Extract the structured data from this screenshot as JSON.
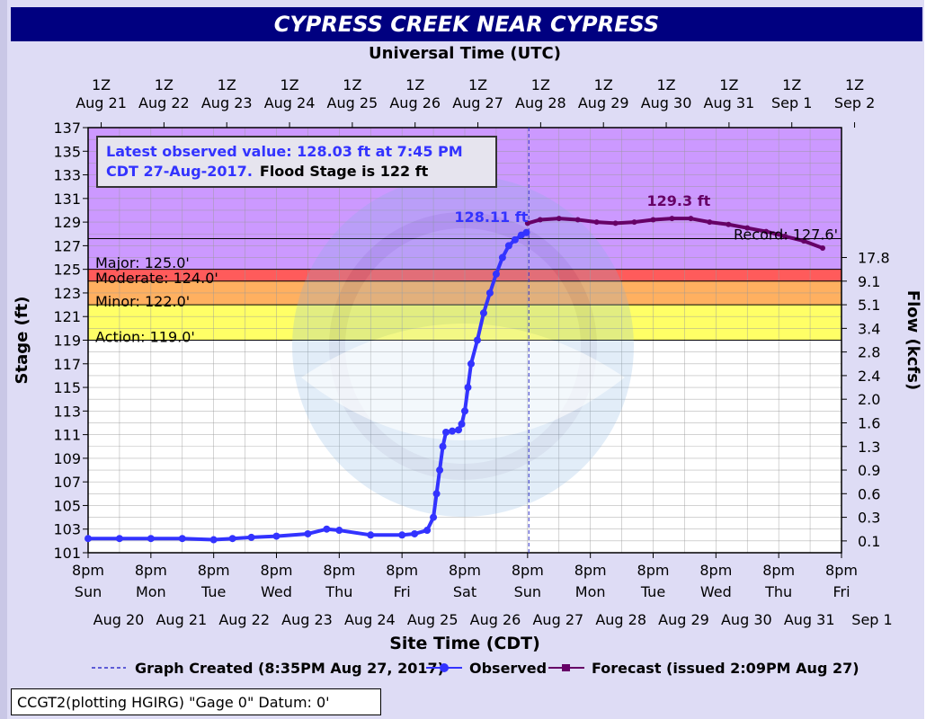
{
  "title": "CYPRESS CREEK NEAR CYPRESS",
  "top_axis_label": "Universal Time (UTC)",
  "bottom_axis_label": "Site Time (CDT)",
  "left_axis_label": "Stage (ft)",
  "right_axis_label": "Flow (kcfs)",
  "top_ticks": [
    {
      "hour": "1Z",
      "date": "Aug 21"
    },
    {
      "hour": "1Z",
      "date": "Aug 22"
    },
    {
      "hour": "1Z",
      "date": "Aug 23"
    },
    {
      "hour": "1Z",
      "date": "Aug 24"
    },
    {
      "hour": "1Z",
      "date": "Aug 25"
    },
    {
      "hour": "1Z",
      "date": "Aug 26"
    },
    {
      "hour": "1Z",
      "date": "Aug 27"
    },
    {
      "hour": "1Z",
      "date": "Aug 28"
    },
    {
      "hour": "1Z",
      "date": "Aug 29"
    },
    {
      "hour": "1Z",
      "date": "Aug 30"
    },
    {
      "hour": "1Z",
      "date": "Aug 31"
    },
    {
      "hour": "1Z",
      "date": "Sep  1"
    },
    {
      "hour": "1Z",
      "date": "Sep  2"
    }
  ],
  "bottom_ticks": [
    {
      "time": "8pm",
      "day": "Sun",
      "date": "Aug 20"
    },
    {
      "time": "8pm",
      "day": "Mon",
      "date": "Aug 21"
    },
    {
      "time": "8pm",
      "day": "Tue",
      "date": "Aug 22"
    },
    {
      "time": "8pm",
      "day": "Wed",
      "date": "Aug 23"
    },
    {
      "time": "8pm",
      "day": "Thu",
      "date": "Aug 24"
    },
    {
      "time": "8pm",
      "day": "Fri",
      "date": "Aug 25"
    },
    {
      "time": "8pm",
      "day": "Sat",
      "date": "Aug 26"
    },
    {
      "time": "8pm",
      "day": "Sun",
      "date": "Aug 27"
    },
    {
      "time": "8pm",
      "day": "Mon",
      "date": "Aug 28"
    },
    {
      "time": "8pm",
      "day": "Tue",
      "date": "Aug 29"
    },
    {
      "time": "8pm",
      "day": "Wed",
      "date": "Aug 30"
    },
    {
      "time": "8pm",
      "day": "Thu",
      "date": "Aug 31"
    },
    {
      "time": "8pm",
      "day": "Fri",
      "date": "Sep  1"
    }
  ],
  "y_ticks": [
    "101",
    "103",
    "105",
    "107",
    "109",
    "111",
    "113",
    "115",
    "117",
    "119",
    "121",
    "123",
    "125",
    "127",
    "129",
    "131",
    "133",
    "135",
    "137"
  ],
  "flow_ticks": [
    {
      "stage": 102.0,
      "label": "0.1"
    },
    {
      "stage": 104.0,
      "label": "0.3"
    },
    {
      "stage": 106.0,
      "label": "0.6"
    },
    {
      "stage": 108.0,
      "label": "0.9"
    },
    {
      "stage": 110.0,
      "label": "1.3"
    },
    {
      "stage": 112.0,
      "label": "1.6"
    },
    {
      "stage": 114.0,
      "label": "2.0"
    },
    {
      "stage": 116.0,
      "label": "2.4"
    },
    {
      "stage": 118.0,
      "label": "2.8"
    },
    {
      "stage": 120.0,
      "label": "3.4"
    },
    {
      "stage": 122.0,
      "label": "5.1"
    },
    {
      "stage": 124.0,
      "label": "9.1"
    },
    {
      "stage": 126.0,
      "label": "17.8"
    }
  ],
  "info_box": {
    "line1": "Latest observed value: 128.03 ft at 7:45 PM",
    "line2_blue": "CDT 27-Aug-2017.",
    "line2_black": "Flood Stage is 122  ft"
  },
  "flood_categories": [
    {
      "name": "Major: 125.0'",
      "stage": 125.0,
      "color": "#cc99ff"
    },
    {
      "name": "Moderate: 124.0'",
      "stage": 124.0,
      "color": "#ff5b5b"
    },
    {
      "name": "Minor: 122.0'",
      "stage": 122.0,
      "color": "#ffb060"
    },
    {
      "name": "Action: 119.0'",
      "stage": 119.0,
      "color": "#ffff66"
    }
  ],
  "record_label": "Record: 127.6'",
  "observed_peak_label": "128.11 ft",
  "forecast_peak_label": "129.3 ft",
  "legend": {
    "created": "Graph Created (8:35PM Aug 27, 2017)",
    "observed": "Observed",
    "forecast": "Forecast (issued 2:09PM Aug 27)"
  },
  "footer": "CCGT2(plotting HGIRG) \"Gage 0\"  Datum:  0'",
  "colors": {
    "observed": "#3333ff",
    "forecast": "#660066",
    "title_bg": "#000080",
    "major": "#cc99ff",
    "moderate": "#ff5b5b",
    "minor": "#ffb060",
    "action": "#ffff66"
  },
  "chart_data": {
    "type": "line",
    "title": "CYPRESS CREEK NEAR CYPRESS",
    "xlabel": "Site Time (CDT)",
    "ylabel": "Stage (ft)",
    "y2label": "Flow (kcfs)",
    "ylim": [
      101,
      137
    ],
    "x_unit": "days after 8pm Sun Aug 20 (CDT)",
    "xlim": [
      0,
      12
    ],
    "grid": true,
    "record_stage": 127.6,
    "flood_stage": 122,
    "graph_created_x": 7.02,
    "series": [
      {
        "name": "Observed",
        "x": [
          0,
          0.5,
          1,
          1.5,
          2,
          2.3,
          2.6,
          3,
          3.5,
          3.8,
          4,
          4.5,
          5,
          5.2,
          5.4,
          5.5,
          5.55,
          5.6,
          5.65,
          5.7,
          5.8,
          5.9,
          5.95,
          6,
          6.05,
          6.1,
          6.2,
          6.3,
          6.4,
          6.5,
          6.6,
          6.7,
          6.8,
          6.9,
          6.98
        ],
        "values": [
          102.2,
          102.2,
          102.2,
          102.2,
          102.1,
          102.2,
          102.3,
          102.4,
          102.6,
          103.0,
          102.9,
          102.5,
          102.5,
          102.6,
          102.9,
          104.0,
          106.0,
          108.0,
          110.0,
          111.2,
          111.3,
          111.4,
          111.9,
          113.0,
          115.0,
          117.0,
          119.0,
          121.3,
          123.0,
          124.6,
          126.0,
          127.0,
          127.5,
          127.9,
          128.11
        ]
      },
      {
        "name": "Forecast",
        "x": [
          7.0,
          7.2,
          7.5,
          7.8,
          8.1,
          8.4,
          8.7,
          9.0,
          9.3,
          9.6,
          9.9,
          10.2,
          10.5,
          10.8,
          11.1,
          11.4,
          11.7
        ],
        "values": [
          128.9,
          129.2,
          129.3,
          129.2,
          129.0,
          128.9,
          129.0,
          129.2,
          129.3,
          129.3,
          129.0,
          128.8,
          128.5,
          128.2,
          127.8,
          127.4,
          126.8
        ]
      }
    ]
  }
}
